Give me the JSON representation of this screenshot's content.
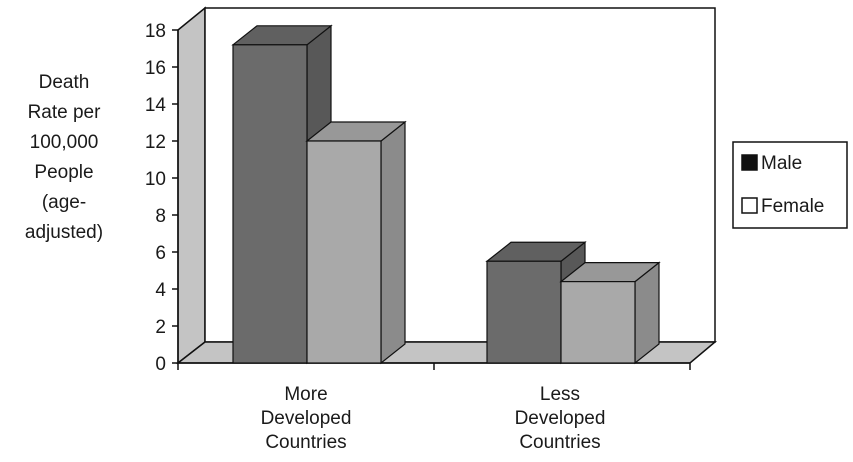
{
  "chart_data": {
    "type": "bar",
    "title": "",
    "xlabel": "",
    "ylabel": "Death Rate per 100,000 People (age-adjusted)",
    "ylabel_lines": [
      "Death",
      "Rate per",
      "100,000",
      "People",
      "(age-",
      "adjusted)"
    ],
    "ylim": [
      0,
      18
    ],
    "yticks": [
      0,
      2,
      4,
      6,
      8,
      10,
      12,
      14,
      16,
      18
    ],
    "categories": [
      "More Developed Countries",
      "Less Developed Countries"
    ],
    "category_lines": [
      [
        "More",
        "Developed",
        "Countries"
      ],
      [
        "Less",
        "Developed",
        "Countries"
      ]
    ],
    "series": [
      {
        "name": "Male",
        "values": [
          17.2,
          5.5
        ],
        "color": "#6b6b6b"
      },
      {
        "name": "Female",
        "values": [
          12.0,
          4.4
        ],
        "color": "#a9a9a9"
      }
    ],
    "grid": false,
    "legend_position": "right",
    "colors": {
      "floor": "#c4c4c4",
      "wall": "#ffffff",
      "axis": "#111111"
    }
  }
}
